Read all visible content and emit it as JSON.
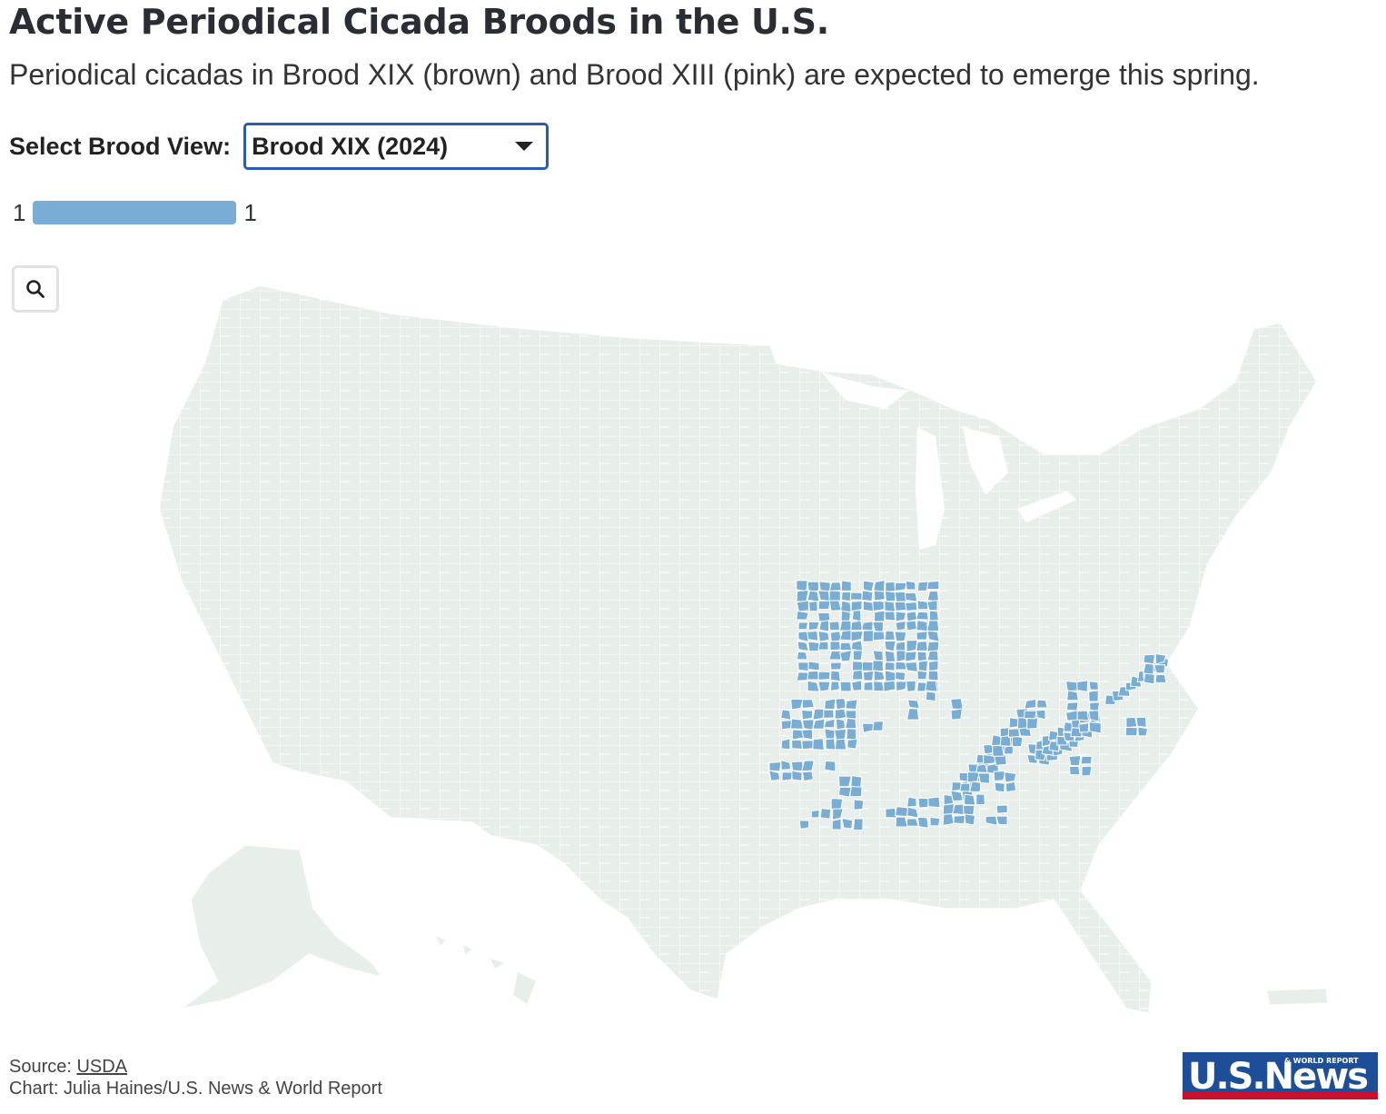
{
  "title": "Active Periodical Cicada Broods in the U.S.",
  "subtitle": "Periodical cicadas in Brood XIX (brown) and Brood XIII (pink) are expected to emerge this spring.",
  "select": {
    "label": "Select Brood View:",
    "value": "Brood XIX (2024)"
  },
  "legend": {
    "min_label": "1",
    "max_label": "1",
    "color": "#7aadd3"
  },
  "map": {
    "base_color": "#e8eeea",
    "border_color": "#ffffff",
    "highlight_color": "#7aadd3",
    "highlighted_region": "Brood XIX counties (Illinois, Missouri, Kentucky, Tennessee, Alabama, Georgia, Carolinas)"
  },
  "footer": {
    "source_prefix": "Source: ",
    "source_link": "USDA",
    "credit": "Chart: Julia Haines/U.S. News & World Report"
  },
  "logo": {
    "main": "USNews",
    "tag": "& WORLD REPORT",
    "colors": {
      "blue": "#1f4e99",
      "red": "#c8102e"
    }
  }
}
